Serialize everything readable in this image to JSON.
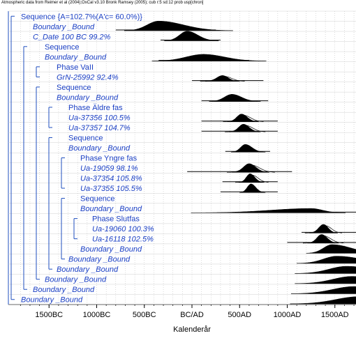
{
  "header": {
    "atmospheric_note": "Atmospheric data from Reimer et al (2004);OxCal v3.10 Bronk Ramsey (2005); cub r:5 sd:12 prob usp[chron]"
  },
  "chart_data": {
    "type": "oxcal-multiplot",
    "xlabel": "Kalenderår",
    "xlim": [
      -1900,
      1900
    ],
    "ticks": [
      {
        "value": -1500,
        "label": "1500BC"
      },
      {
        "value": -1000,
        "label": "1000BC"
      },
      {
        "value": -500,
        "label": "500BC"
      },
      {
        "value": 0,
        "label": "BC/AD"
      },
      {
        "value": 500,
        "label": "500AD"
      },
      {
        "value": 1000,
        "label": "1000AD"
      },
      {
        "value": 1500,
        "label": "1500AD"
      }
    ],
    "colors": {
      "ink": "#000000",
      "grid": "#9a9a9a",
      "line": "#1f4fbf",
      "label": "#1a3fc4"
    },
    "rows": [
      {
        "label": "Sequence  {A=102.7%(A'c= 60.0%)}",
        "style": "normal",
        "indent": 0,
        "dist": null
      },
      {
        "label": "Boundary _Bound",
        "style": "italic",
        "indent": 1,
        "dist": {
          "peak": -350,
          "lw": 120,
          "rw": 260,
          "h": 1.0,
          "range": [
            -800,
            250
          ],
          "prior": false
        }
      },
      {
        "label": "C_Date  100 BC  99.2%",
        "style": "italic",
        "indent": 1,
        "dist": {
          "peak": -50,
          "lw": 80,
          "rw": 110,
          "h": 1.0,
          "range": [
            -330,
            300
          ],
          "prior": false
        }
      },
      {
        "label": "Sequence",
        "style": "normal",
        "indent": 2,
        "dist": null
      },
      {
        "label": "Boundary _Bound",
        "style": "italic",
        "indent": 2,
        "dist": {
          "peak": 120,
          "lw": 180,
          "rw": 220,
          "h": 0.7,
          "range": [
            -350,
            600
          ],
          "prior": false
        }
      },
      {
        "label": "Phase VaII",
        "style": "normal",
        "indent": 3,
        "dist": null
      },
      {
        "label": "GrN-25992   92.4%",
        "style": "italic",
        "indent": 3,
        "dist": {
          "peak": 320,
          "lw": 60,
          "rw": 60,
          "h": 0.6,
          "range": [
            0,
            750
          ],
          "prior": true
        }
      },
      {
        "label": "Sequence",
        "style": "normal",
        "indent": 3,
        "dist": null
      },
      {
        "label": "Boundary _Bound",
        "style": "italic",
        "indent": 3,
        "dist": {
          "peak": 420,
          "lw": 80,
          "rw": 100,
          "h": 0.75,
          "range": [
            100,
            800
          ],
          "prior": false
        }
      },
      {
        "label": "Phase Äldre fas",
        "style": "normal",
        "indent": 4,
        "dist": null
      },
      {
        "label": "Ua-37356   100.5%",
        "style": "italic",
        "indent": 4,
        "dist": {
          "peak": 520,
          "lw": 50,
          "rw": 60,
          "h": 0.8,
          "range": [
            100,
            900
          ],
          "prior": true
        }
      },
      {
        "label": "Ua-37357   104.7%",
        "style": "italic",
        "indent": 4,
        "dist": {
          "peak": 540,
          "lw": 50,
          "rw": 60,
          "h": 0.8,
          "range": [
            100,
            900
          ],
          "prior": true
        }
      },
      {
        "label": "Sequence",
        "style": "normal",
        "indent": 4,
        "dist": null
      },
      {
        "label": "Boundary _Bound",
        "style": "italic",
        "indent": 4,
        "dist": {
          "peak": 560,
          "lw": 50,
          "rw": 70,
          "h": 0.8,
          "range": [
            350,
            820
          ],
          "prior": false
        }
      },
      {
        "label": "Phase Yngre fas",
        "style": "normal",
        "indent": 5,
        "dist": null
      },
      {
        "label": "Ua-19059   98.1%",
        "style": "italic",
        "indent": 5,
        "dist": {
          "peak": 600,
          "lw": 60,
          "rw": 70,
          "h": 0.9,
          "range": [
            -50,
            1050
          ],
          "prior": true
        }
      },
      {
        "label": "Ua-37354   105.8%",
        "style": "italic",
        "indent": 5,
        "dist": {
          "peak": 610,
          "lw": 40,
          "rw": 50,
          "h": 0.9,
          "range": [
            320,
            900
          ],
          "prior": true
        }
      },
      {
        "label": "Ua-37355   105.5%",
        "style": "italic",
        "indent": 5,
        "dist": {
          "peak": 620,
          "lw": 40,
          "rw": 50,
          "h": 0.9,
          "range": [
            300,
            900
          ],
          "prior": false
        }
      },
      {
        "label": "Sequence",
        "style": "normal",
        "indent": 5,
        "dist": null
      },
      {
        "label": "Boundary _Bound",
        "style": "italic",
        "indent": 5,
        "dist": {
          "peak": 1250,
          "lw": 420,
          "rw": 120,
          "h": 0.45,
          "range": [
            700,
            1850
          ],
          "prior": false
        }
      },
      {
        "label": "Phase Slutfas",
        "style": "normal",
        "indent": 6,
        "dist": null
      },
      {
        "label": "Ua-19060   100.3%",
        "style": "italic",
        "indent": 6,
        "dist": {
          "peak": 1380,
          "lw": 50,
          "rw": 50,
          "h": 0.9,
          "range": [
            1150,
            1950
          ],
          "prior": true
        }
      },
      {
        "label": "Ua-16118   102.5%",
        "style": "italic",
        "indent": 6,
        "dist": {
          "peak": 1360,
          "lw": 50,
          "rw": 60,
          "h": 0.9,
          "range": [
            1000,
            1950
          ],
          "prior": true
        }
      },
      {
        "label": "Boundary _Bound",
        "style": "italic",
        "indent": 5,
        "dist": {
          "peak": 1470,
          "lw": 90,
          "rw": 200,
          "h": 0.9,
          "range": [
            1300,
            1950
          ],
          "prior": false
        }
      },
      {
        "label": "Boundary _Bound",
        "style": "italic",
        "indent": 4,
        "dist": {
          "peak": 1520,
          "lw": 140,
          "rw": 260,
          "h": 0.75,
          "range": [
            1300,
            1950
          ],
          "prior": false
        }
      },
      {
        "label": "Boundary _Bound",
        "style": "italic",
        "indent": 3,
        "dist": {
          "peak": 1620,
          "lw": 180,
          "rw": 300,
          "h": 0.75,
          "range": [
            1300,
            1950
          ],
          "prior": false
        }
      },
      {
        "label": "Boundary _Bound",
        "style": "italic",
        "indent": 2,
        "dist": {
          "peak": 1680,
          "lw": 200,
          "rw": 300,
          "h": 0.75,
          "range": [
            1400,
            1950
          ],
          "prior": false
        }
      },
      {
        "label": "Boundary _Bound",
        "style": "italic",
        "indent": 1,
        "dist": {
          "peak": 1700,
          "lw": 220,
          "rw": 300,
          "h": 0.75,
          "range": [
            1350,
            1950
          ],
          "prior": false
        }
      },
      {
        "label": "Boundary _Bound",
        "style": "italic",
        "indent": 0,
        "dist": {
          "peak": 1750,
          "lw": 240,
          "rw": 300,
          "h": 0.75,
          "range": [
            1400,
            1950
          ],
          "prior": false
        }
      }
    ],
    "brackets": [
      {
        "from": 0,
        "to": 28,
        "indent": 0
      },
      {
        "from": 3,
        "to": 27,
        "indent": 1
      },
      {
        "from": 5,
        "to": 6,
        "indent": 2
      },
      {
        "from": 7,
        "to": 26,
        "indent": 2
      },
      {
        "from": 9,
        "to": 11,
        "indent": 3
      },
      {
        "from": 12,
        "to": 25,
        "indent": 3
      },
      {
        "from": 14,
        "to": 17,
        "indent": 4
      },
      {
        "from": 18,
        "to": 24,
        "indent": 4
      },
      {
        "from": 20,
        "to": 22,
        "indent": 5
      }
    ]
  }
}
